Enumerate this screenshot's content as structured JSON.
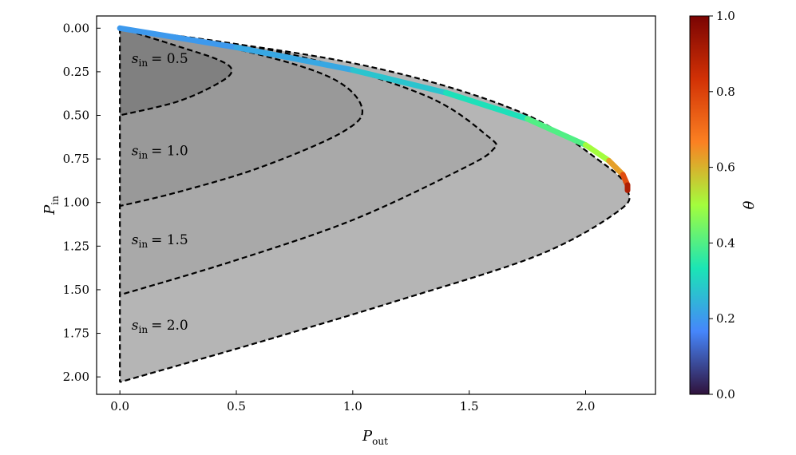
{
  "chart_data": {
    "type": "area",
    "xlabel": "P",
    "xlabel_sub": "out",
    "ylabel": "P",
    "ylabel_sub": "in",
    "xlim": [
      -0.1,
      2.3
    ],
    "ylim": [
      2.1,
      -0.07
    ],
    "y_inverted": true,
    "xticks": [
      "0.0",
      "0.5",
      "1.0",
      "1.5",
      "2.0"
    ],
    "yticks": [
      "0.00",
      "0.25",
      "0.50",
      "0.75",
      "1.00",
      "1.25",
      "1.50",
      "1.75",
      "2.00"
    ],
    "grid": false,
    "regions": [
      {
        "label": "s",
        "label_sub": "in",
        "label_value": "= 0.5",
        "s_in": 0.5,
        "fill": "#808080",
        "boundary": [
          [
            0,
            0
          ],
          [
            0.24,
            0.1
          ],
          [
            0.42,
            0.18
          ],
          [
            0.48,
            0.24
          ],
          [
            0.43,
            0.31
          ],
          [
            0.25,
            0.42
          ],
          [
            0,
            0.5
          ]
        ]
      },
      {
        "label": "s",
        "label_sub": "in",
        "label_value": "= 1.0",
        "s_in": 1.0,
        "fill": "#999999",
        "boundary": [
          [
            0,
            0
          ],
          [
            0.5,
            0.12
          ],
          [
            0.9,
            0.28
          ],
          [
            1.04,
            0.46
          ],
          [
            0.95,
            0.6
          ],
          [
            0.6,
            0.8
          ],
          [
            0.25,
            0.94
          ],
          [
            0,
            1.02
          ]
        ]
      },
      {
        "label": "s",
        "label_sub": "in",
        "label_value": "= 1.5",
        "s_in": 1.5,
        "fill": "#a9a9a9",
        "boundary": [
          [
            0,
            0
          ],
          [
            0.7,
            0.14
          ],
          [
            1.3,
            0.38
          ],
          [
            1.58,
            0.62
          ],
          [
            1.6,
            0.7
          ],
          [
            1.45,
            0.82
          ],
          [
            1.0,
            1.1
          ],
          [
            0.5,
            1.33
          ],
          [
            0,
            1.53
          ]
        ]
      },
      {
        "label": "s",
        "label_sub": "in",
        "label_value": "= 2.0",
        "s_in": 2.0,
        "fill": "#b5b5b5",
        "boundary": [
          [
            0,
            0
          ],
          [
            1.0,
            0.2
          ],
          [
            1.7,
            0.47
          ],
          [
            2.08,
            0.78
          ],
          [
            2.18,
            0.93
          ],
          [
            2.14,
            1.05
          ],
          [
            1.8,
            1.3
          ],
          [
            1.2,
            1.56
          ],
          [
            0.6,
            1.8
          ],
          [
            0,
            2.03
          ]
        ]
      }
    ],
    "envelope": {
      "colored_by": "θ",
      "points": [
        {
          "x": 0.0,
          "y": 0.0,
          "theta": 0.2
        },
        {
          "x": 0.5,
          "y": 0.11,
          "theta": 0.2
        },
        {
          "x": 1.0,
          "y": 0.24,
          "theta": 0.25
        },
        {
          "x": 1.4,
          "y": 0.37,
          "theta": 0.3
        },
        {
          "x": 1.75,
          "y": 0.52,
          "theta": 0.35
        },
        {
          "x": 2.0,
          "y": 0.67,
          "theta": 0.45
        },
        {
          "x": 2.1,
          "y": 0.76,
          "theta": 0.55
        },
        {
          "x": 2.16,
          "y": 0.84,
          "theta": 0.7
        },
        {
          "x": 2.18,
          "y": 0.9,
          "theta": 0.85
        },
        {
          "x": 2.18,
          "y": 0.93,
          "theta": 0.95
        }
      ]
    },
    "colorbar": {
      "label": "θ",
      "range": [
        0.0,
        1.0
      ],
      "ticks": [
        "0.0",
        "0.2",
        "0.4",
        "0.6",
        "0.8",
        "1.0"
      ],
      "colormap": "turbo",
      "stops": [
        "#30123b",
        "#4686fb",
        "#1be5b5",
        "#a3fd3d",
        "#fb8022",
        "#d23105",
        "#7a0403"
      ]
    }
  }
}
